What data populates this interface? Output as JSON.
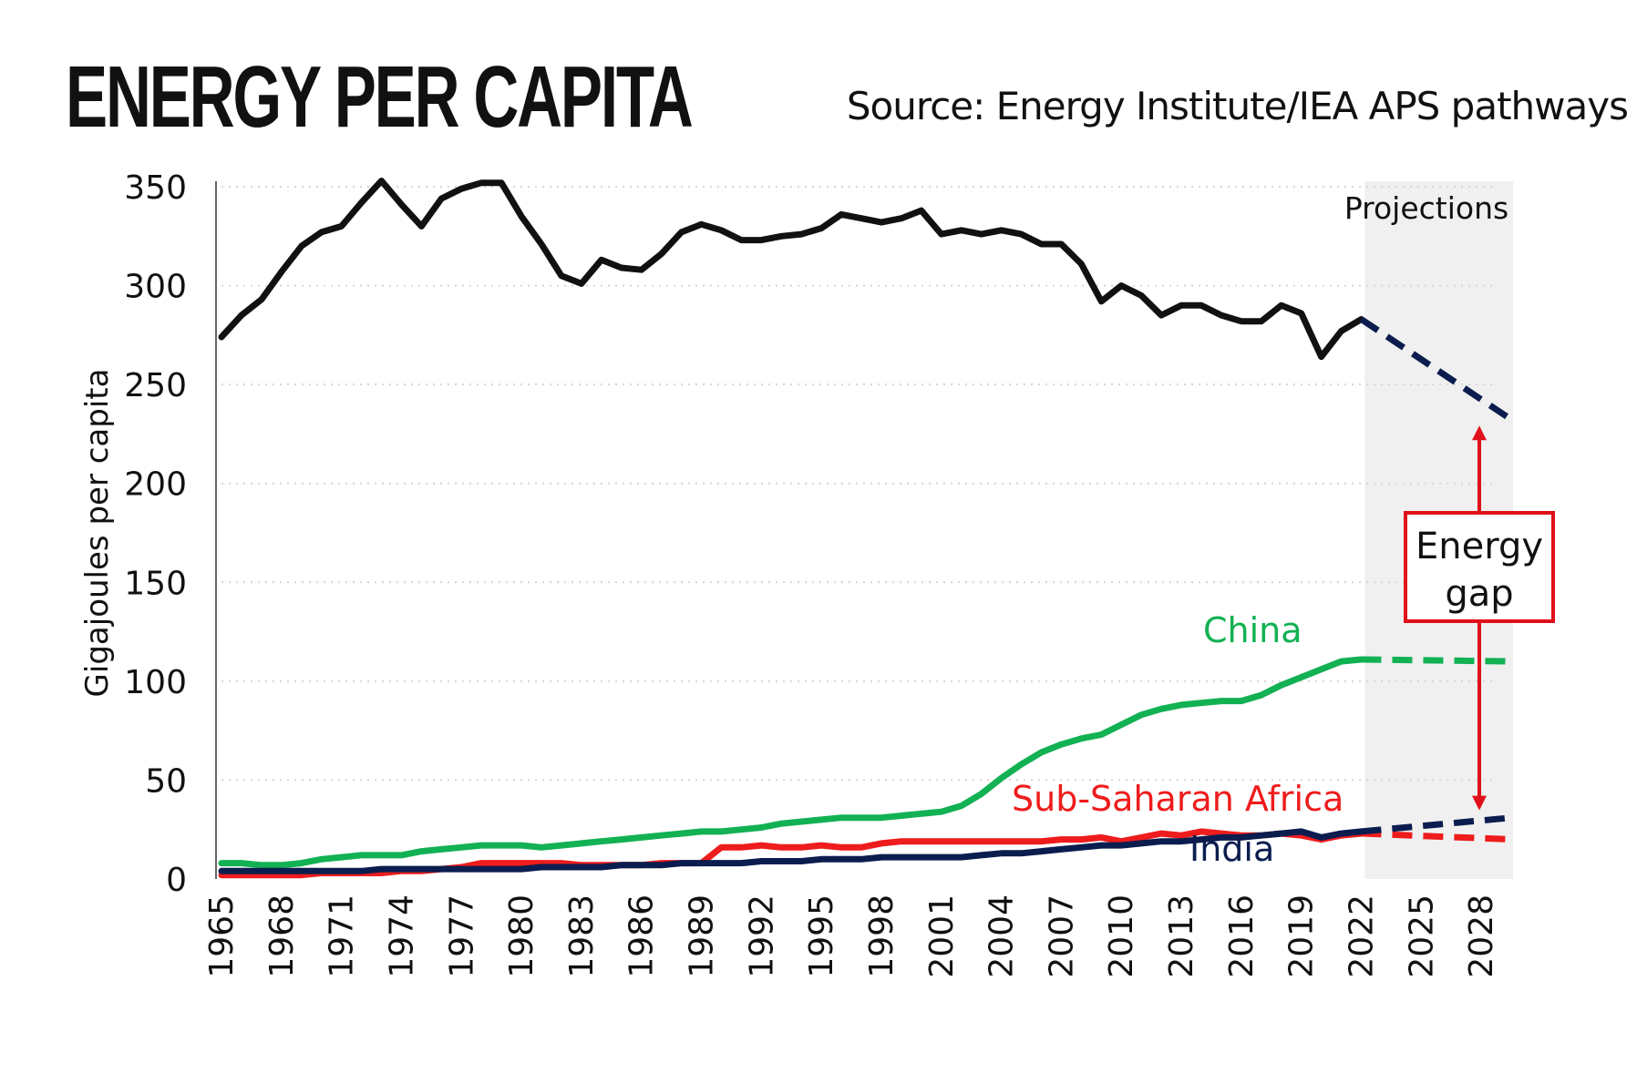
{
  "title": "ENERGY PER CAPITA",
  "source": "Source: Energy Institute/IEA APS pathways",
  "colors": {
    "world": "#111111",
    "china": "#12b153",
    "ssa": "#ee1c1c",
    "india": "#0b1d4f",
    "projection_band": "#f0f0f0",
    "gap": "#e0101a",
    "projection_line": "#0b1d4f"
  },
  "chart_data": {
    "type": "line",
    "ylabel": "Gigajoules per capita",
    "ylim": [
      0,
      350
    ],
    "yticks": [
      0,
      50,
      100,
      150,
      200,
      250,
      300,
      350
    ],
    "xlim": [
      1965,
      2030
    ],
    "xticks": [
      1965,
      1968,
      1971,
      1974,
      1977,
      1980,
      1983,
      1986,
      1989,
      1992,
      1995,
      1998,
      2001,
      2004,
      2007,
      2010,
      2013,
      2016,
      2019,
      2022,
      2025,
      2028
    ],
    "projection_label": "Projections",
    "projection_range": [
      2022,
      2030
    ],
    "gap_label": [
      "Energy",
      "gap"
    ],
    "grid": "horizontal dotted",
    "series": [
      {
        "key": "world",
        "x": [
          1965,
          1966,
          1967,
          1968,
          1969,
          1970,
          1971,
          1972,
          1973,
          1974,
          1975,
          1976,
          1977,
          1978,
          1979,
          1980,
          1981,
          1982,
          1983,
          1984,
          1985,
          1986,
          1987,
          1988,
          1989,
          1990,
          1991,
          1992,
          1993,
          1994,
          1995,
          1996,
          1997,
          1998,
          1999,
          2000,
          2001,
          2002,
          2003,
          2004,
          2005,
          2006,
          2007,
          2008,
          2009,
          2010,
          2011,
          2012,
          2013,
          2014,
          2015,
          2016,
          2017,
          2018,
          2019,
          2020,
          2021,
          2022
        ],
        "values": [
          274,
          285,
          293,
          307,
          320,
          327,
          330,
          342,
          353,
          341,
          330,
          344,
          349,
          352,
          352,
          335,
          321,
          305,
          301,
          313,
          309,
          308,
          316,
          327,
          331,
          328,
          323,
          323,
          325,
          326,
          329,
          336,
          334,
          332,
          334,
          338,
          326,
          328,
          326,
          328,
          326,
          321,
          321,
          311,
          292,
          300,
          295,
          285,
          290,
          290,
          285,
          282,
          282,
          290,
          286,
          264,
          277,
          283
        ],
        "dashed_x": [
          2022,
          2030
        ],
        "dashed_values": [
          283,
          232
        ]
      },
      {
        "key": "china",
        "name": "China",
        "x": [
          1965,
          1966,
          1967,
          1968,
          1969,
          1970,
          1971,
          1972,
          1973,
          1974,
          1975,
          1976,
          1977,
          1978,
          1979,
          1980,
          1981,
          1982,
          1983,
          1984,
          1985,
          1986,
          1987,
          1988,
          1989,
          1990,
          1991,
          1992,
          1993,
          1994,
          1995,
          1996,
          1997,
          1998,
          1999,
          2000,
          2001,
          2002,
          2003,
          2004,
          2005,
          2006,
          2007,
          2008,
          2009,
          2010,
          2011,
          2012,
          2013,
          2014,
          2015,
          2016,
          2017,
          2018,
          2019,
          2020,
          2021,
          2022
        ],
        "values": [
          8,
          8,
          7,
          7,
          8,
          10,
          11,
          12,
          12,
          12,
          14,
          15,
          16,
          17,
          17,
          17,
          16,
          17,
          18,
          19,
          20,
          21,
          22,
          23,
          24,
          24,
          25,
          26,
          28,
          29,
          30,
          31,
          31,
          31,
          32,
          33,
          34,
          37,
          43,
          51,
          58,
          64,
          68,
          71,
          73,
          78,
          83,
          86,
          88,
          89,
          90,
          90,
          93,
          98,
          102,
          106,
          110,
          111
        ],
        "dashed_x": [
          2022,
          2030
        ],
        "dashed_values": [
          111,
          110
        ]
      },
      {
        "key": "ssa",
        "name": "Sub-Saharan Africa",
        "x": [
          1965,
          1966,
          1967,
          1968,
          1969,
          1970,
          1971,
          1972,
          1973,
          1974,
          1975,
          1976,
          1977,
          1978,
          1979,
          1980,
          1981,
          1982,
          1983,
          1984,
          1985,
          1986,
          1987,
          1988,
          1989,
          1990,
          1991,
          1992,
          1993,
          1994,
          1995,
          1996,
          1997,
          1998,
          1999,
          2000,
          2001,
          2002,
          2003,
          2004,
          2005,
          2006,
          2007,
          2008,
          2009,
          2010,
          2011,
          2012,
          2013,
          2014,
          2015,
          2016,
          2017,
          2018,
          2019,
          2020,
          2021,
          2022
        ],
        "values": [
          2,
          2,
          2,
          2,
          2,
          3,
          3,
          3,
          3,
          4,
          4,
          5,
          6,
          8,
          8,
          8,
          8,
          8,
          7,
          7,
          7,
          7,
          8,
          8,
          8,
          16,
          16,
          17,
          16,
          16,
          17,
          16,
          16,
          18,
          19,
          19,
          19,
          19,
          19,
          19,
          19,
          19,
          20,
          20,
          21,
          19,
          21,
          23,
          22,
          24,
          23,
          22,
          22,
          23,
          22,
          20,
          22,
          23
        ],
        "dashed_x": [
          2022,
          2030
        ],
        "dashed_values": [
          23,
          20
        ]
      },
      {
        "key": "india",
        "name": "India",
        "x": [
          1965,
          1966,
          1967,
          1968,
          1969,
          1970,
          1971,
          1972,
          1973,
          1974,
          1975,
          1976,
          1977,
          1978,
          1979,
          1980,
          1981,
          1982,
          1983,
          1984,
          1985,
          1986,
          1987,
          1988,
          1989,
          1990,
          1991,
          1992,
          1993,
          1994,
          1995,
          1996,
          1997,
          1998,
          1999,
          2000,
          2001,
          2002,
          2003,
          2004,
          2005,
          2006,
          2007,
          2008,
          2009,
          2010,
          2011,
          2012,
          2013,
          2014,
          2015,
          2016,
          2017,
          2018,
          2019,
          2020,
          2021,
          2022
        ],
        "values": [
          4,
          4,
          4,
          4,
          4,
          4,
          4,
          4,
          5,
          5,
          5,
          5,
          5,
          5,
          5,
          5,
          6,
          6,
          6,
          6,
          7,
          7,
          7,
          8,
          8,
          8,
          8,
          9,
          9,
          9,
          10,
          10,
          10,
          11,
          11,
          11,
          11,
          11,
          12,
          13,
          13,
          14,
          15,
          16,
          17,
          17,
          18,
          19,
          19,
          20,
          21,
          21,
          22,
          23,
          24,
          21,
          23,
          24
        ],
        "dashed_x": [
          2022,
          2030
        ],
        "dashed_values": [
          24,
          31
        ]
      }
    ]
  }
}
